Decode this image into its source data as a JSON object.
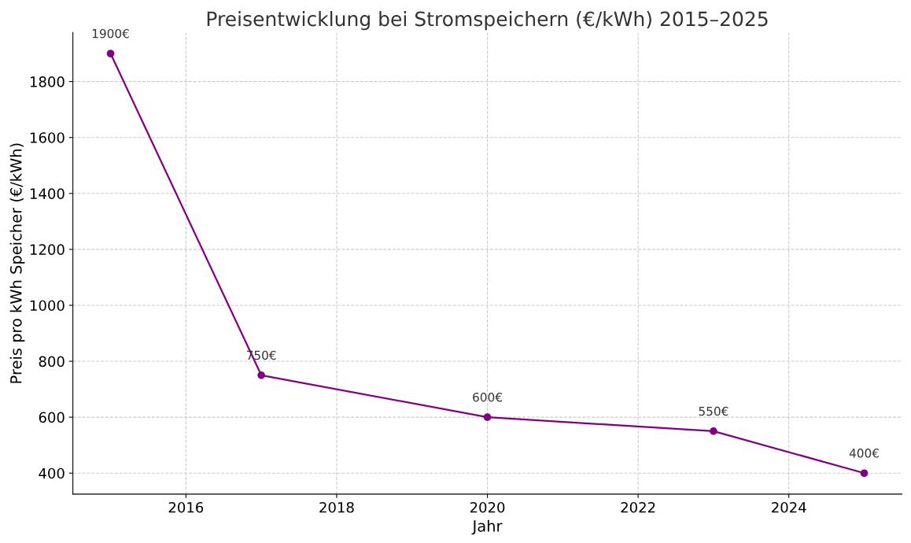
{
  "chart_data": {
    "type": "line",
    "title": "Preisentwicklung bei Stromspeichern (€/kWh) 2015–2025",
    "xlabel": "Jahr",
    "ylabel": "Preis pro kWh Speicher (€/kWh)",
    "x": [
      2015,
      2017,
      2020,
      2023,
      2025
    ],
    "series": [
      {
        "color": "#800080",
        "values": [
          1900,
          750,
          600,
          550,
          400
        ],
        "value_labels": [
          "1900€",
          "750€",
          "600€",
          "550€",
          "400€"
        ]
      }
    ],
    "xlim": [
      2014.5,
      2025.5
    ],
    "xticks": [
      2016,
      2018,
      2020,
      2022,
      2024
    ],
    "ylim": [
      325,
      1975
    ],
    "yticks": [
      400,
      600,
      800,
      1000,
      1200,
      1400,
      1600,
      1800
    ],
    "grid": true,
    "marker": "circle",
    "line_style": "solid"
  }
}
